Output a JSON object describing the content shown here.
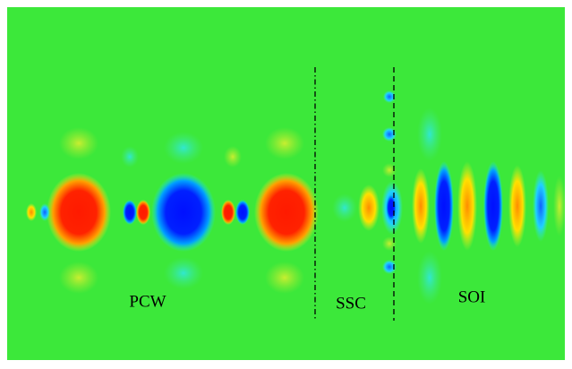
{
  "labels": [
    {
      "text": "PCW"
    },
    {
      "text": "SSC"
    },
    {
      "text": "SOI"
    }
  ]
}
